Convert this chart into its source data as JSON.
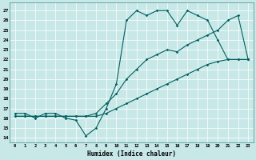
{
  "xlabel": "Humidex (Indice chaleur)",
  "bg_color": "#c8e8e8",
  "grid_color": "#ffffff",
  "line_color": "#006060",
  "xlim": [
    -0.5,
    23.5
  ],
  "ylim": [
    13.5,
    27.8
  ],
  "xticks": [
    0,
    1,
    2,
    3,
    4,
    5,
    6,
    7,
    8,
    9,
    10,
    11,
    12,
    13,
    14,
    15,
    16,
    17,
    18,
    19,
    20,
    21,
    22,
    23
  ],
  "yticks": [
    14,
    15,
    16,
    17,
    18,
    19,
    20,
    21,
    22,
    23,
    24,
    25,
    26,
    27
  ],
  "line1_x": [
    0,
    1,
    2,
    3,
    4,
    5,
    6,
    7,
    8,
    9,
    10,
    11,
    12,
    13,
    14,
    15,
    16,
    17,
    18,
    19,
    20,
    21,
    22,
    23
  ],
  "line1_y": [
    16.5,
    16.5,
    16.0,
    16.5,
    16.5,
    16.0,
    15.8,
    14.2,
    15.0,
    17.0,
    19.5,
    26.0,
    27.0,
    26.5,
    27.0,
    27.0,
    25.5,
    27.0,
    26.5,
    26.0,
    24.0,
    22.0,
    22.0,
    22.0
  ],
  "line2_x": [
    0,
    1,
    2,
    3,
    4,
    5,
    6,
    7,
    8,
    9,
    10,
    11,
    12,
    13,
    14,
    15,
    16,
    17,
    18,
    19,
    20,
    21,
    22,
    23
  ],
  "line2_y": [
    16.2,
    16.2,
    16.2,
    16.2,
    16.2,
    16.2,
    16.2,
    16.2,
    16.2,
    16.5,
    17.0,
    17.5,
    18.0,
    18.5,
    19.0,
    19.5,
    20.0,
    20.5,
    21.0,
    21.5,
    21.8,
    22.0,
    22.0,
    22.0
  ],
  "line3_x": [
    0,
    1,
    2,
    3,
    4,
    5,
    6,
    7,
    8,
    9,
    10,
    11,
    12,
    13,
    14,
    15,
    16,
    17,
    18,
    19,
    20,
    21,
    22,
    23
  ],
  "line3_y": [
    16.2,
    16.2,
    16.2,
    16.2,
    16.2,
    16.2,
    16.2,
    16.2,
    16.5,
    17.5,
    18.5,
    20.0,
    21.0,
    22.0,
    22.5,
    23.0,
    22.8,
    23.5,
    24.0,
    24.5,
    25.0,
    26.0,
    26.5,
    22.0
  ]
}
